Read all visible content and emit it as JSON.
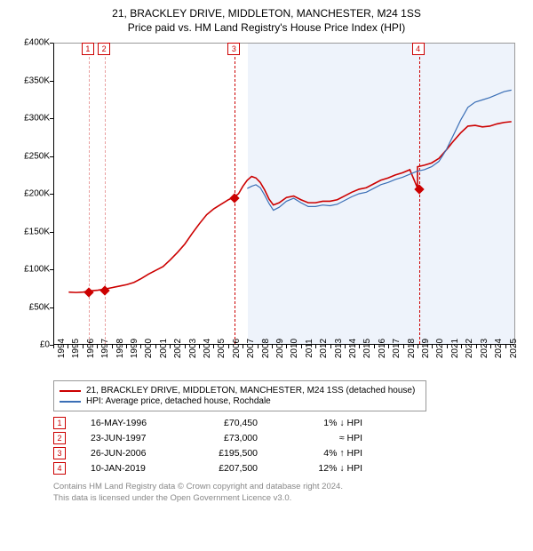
{
  "title_line1": "21, BRACKLEY DRIVE, MIDDLETON, MANCHESTER, M24 1SS",
  "title_line2": "Price paid vs. HM Land Registry's House Price Index (HPI)",
  "chart": {
    "type": "line",
    "background_color": "#ffffff",
    "band_color": "#eef3fb",
    "grid_color": "#999999",
    "ylim": [
      0,
      400000
    ],
    "ytick_step": 50000,
    "yticks": [
      "£0",
      "£50K",
      "£100K",
      "£150K",
      "£200K",
      "£250K",
      "£300K",
      "£350K",
      "£400K"
    ],
    "xlim": [
      1994,
      2025.7
    ],
    "xticks": [
      1994,
      1995,
      1996,
      1997,
      1998,
      1999,
      2000,
      2001,
      2002,
      2003,
      2004,
      2005,
      2006,
      2007,
      2008,
      2009,
      2010,
      2011,
      2012,
      2013,
      2014,
      2015,
      2016,
      2017,
      2018,
      2019,
      2020,
      2021,
      2022,
      2023,
      2024,
      2025
    ],
    "band": {
      "from": 2007.3,
      "to": 2025.7
    },
    "series": [
      {
        "name": "21, BRACKLEY DRIVE, MIDDLETON, MANCHESTER, M24 1SS (detached house)",
        "color": "#cc0000",
        "line_width": 1.6,
        "points": [
          [
            1995.0,
            69000
          ],
          [
            1995.5,
            68500
          ],
          [
            1996.0,
            69000
          ],
          [
            1996.37,
            70450
          ],
          [
            1997.0,
            71500
          ],
          [
            1997.48,
            73000
          ],
          [
            1998.0,
            75000
          ],
          [
            1998.5,
            77000
          ],
          [
            1999.0,
            79000
          ],
          [
            1999.5,
            82000
          ],
          [
            2000.0,
            87000
          ],
          [
            2000.5,
            93000
          ],
          [
            2001.0,
            98000
          ],
          [
            2001.5,
            103000
          ],
          [
            2002.0,
            112000
          ],
          [
            2002.5,
            122000
          ],
          [
            2003.0,
            133000
          ],
          [
            2003.5,
            147000
          ],
          [
            2004.0,
            160000
          ],
          [
            2004.5,
            172000
          ],
          [
            2005.0,
            180000
          ],
          [
            2005.5,
            186000
          ],
          [
            2006.0,
            192000
          ],
          [
            2006.4,
            195500
          ],
          [
            2006.7,
            200000
          ],
          [
            2007.0,
            210000
          ],
          [
            2007.3,
            218000
          ],
          [
            2007.6,
            223000
          ],
          [
            2007.9,
            221000
          ],
          [
            2008.2,
            215000
          ],
          [
            2008.5,
            205000
          ],
          [
            2008.8,
            193000
          ],
          [
            2009.1,
            185000
          ],
          [
            2009.5,
            188000
          ],
          [
            2010.0,
            195000
          ],
          [
            2010.5,
            197000
          ],
          [
            2011.0,
            192000
          ],
          [
            2011.5,
            188000
          ],
          [
            2012.0,
            188000
          ],
          [
            2012.5,
            190000
          ],
          [
            2013.0,
            190000
          ],
          [
            2013.5,
            192000
          ],
          [
            2014.0,
            197000
          ],
          [
            2014.5,
            202000
          ],
          [
            2015.0,
            206000
          ],
          [
            2015.5,
            208000
          ],
          [
            2016.0,
            213000
          ],
          [
            2016.5,
            218000
          ],
          [
            2017.0,
            221000
          ],
          [
            2017.5,
            225000
          ],
          [
            2018.0,
            228000
          ],
          [
            2018.5,
            232000
          ],
          [
            2019.03,
            207500
          ],
          [
            2019.03,
            236000
          ],
          [
            2019.5,
            238000
          ],
          [
            2020.0,
            241000
          ],
          [
            2020.5,
            247000
          ],
          [
            2021.0,
            258000
          ],
          [
            2021.5,
            270000
          ],
          [
            2022.0,
            281000
          ],
          [
            2022.5,
            290000
          ],
          [
            2023.0,
            291000
          ],
          [
            2023.5,
            289000
          ],
          [
            2024.0,
            290000
          ],
          [
            2024.5,
            293000
          ],
          [
            2025.0,
            295000
          ],
          [
            2025.5,
            296000
          ]
        ]
      },
      {
        "name": "HPI: Average price, detached house, Rochdale",
        "color": "#3b6fb6",
        "line_width": 1.2,
        "points": [
          [
            2007.3,
            207000
          ],
          [
            2007.6,
            210000
          ],
          [
            2007.9,
            212000
          ],
          [
            2008.2,
            208000
          ],
          [
            2008.5,
            198000
          ],
          [
            2008.8,
            187000
          ],
          [
            2009.1,
            178000
          ],
          [
            2009.5,
            182000
          ],
          [
            2010.0,
            190000
          ],
          [
            2010.5,
            194000
          ],
          [
            2011.0,
            188000
          ],
          [
            2011.5,
            183000
          ],
          [
            2012.0,
            183000
          ],
          [
            2012.5,
            185000
          ],
          [
            2013.0,
            184000
          ],
          [
            2013.5,
            186000
          ],
          [
            2014.0,
            191000
          ],
          [
            2014.5,
            196000
          ],
          [
            2015.0,
            200000
          ],
          [
            2015.5,
            202000
          ],
          [
            2016.0,
            207000
          ],
          [
            2016.5,
            212000
          ],
          [
            2017.0,
            215000
          ],
          [
            2017.5,
            219000
          ],
          [
            2018.0,
            222000
          ],
          [
            2018.5,
            226000
          ],
          [
            2019.0,
            230000
          ],
          [
            2019.5,
            232000
          ],
          [
            2020.0,
            236000
          ],
          [
            2020.5,
            243000
          ],
          [
            2021.0,
            258000
          ],
          [
            2021.5,
            278000
          ],
          [
            2022.0,
            298000
          ],
          [
            2022.5,
            315000
          ],
          [
            2023.0,
            322000
          ],
          [
            2023.5,
            325000
          ],
          [
            2024.0,
            328000
          ],
          [
            2024.5,
            332000
          ],
          [
            2025.0,
            336000
          ],
          [
            2025.5,
            338000
          ]
        ]
      }
    ],
    "sale_markers": [
      {
        "n": "1",
        "x": 1996.37,
        "y": 70450,
        "dash_color": "#e9a0a0"
      },
      {
        "n": "2",
        "x": 1997.48,
        "y": 73000,
        "dash_color": "#e9a0a0"
      },
      {
        "n": "3",
        "x": 2006.4,
        "y": 195500,
        "dash_color": "#cc0000"
      },
      {
        "n": "4",
        "x": 2019.03,
        "y": 207500,
        "dash_color": "#cc0000"
      }
    ],
    "marker_fill": "#cc0000"
  },
  "legend": {
    "items": [
      {
        "color": "#cc0000",
        "label": "21, BRACKLEY DRIVE, MIDDLETON, MANCHESTER, M24 1SS (detached house)"
      },
      {
        "color": "#3b6fb6",
        "label": "HPI: Average price, detached house, Rochdale"
      }
    ]
  },
  "sales_table": {
    "rows": [
      {
        "n": "1",
        "date": "16-MAY-1996",
        "price": "£70,450",
        "delta": "1% ↓ HPI"
      },
      {
        "n": "2",
        "date": "23-JUN-1997",
        "price": "£73,000",
        "delta": "≈ HPI"
      },
      {
        "n": "3",
        "date": "26-JUN-2006",
        "price": "£195,500",
        "delta": "4% ↑ HPI"
      },
      {
        "n": "4",
        "date": "10-JAN-2019",
        "price": "£207,500",
        "delta": "12% ↓ HPI"
      }
    ]
  },
  "footer": {
    "line1": "Contains HM Land Registry data © Crown copyright and database right 2024.",
    "line2": "This data is licensed under the Open Government Licence v3.0."
  }
}
